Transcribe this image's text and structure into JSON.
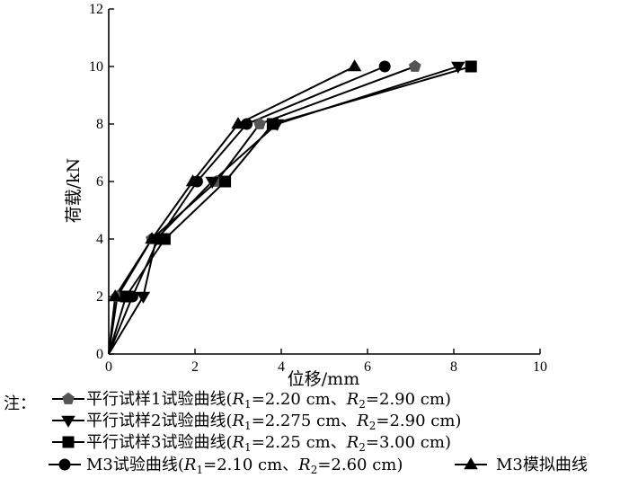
{
  "chart_data": {
    "type": "line",
    "xlabel": "位移/mm",
    "ylabel": "荷载/kN",
    "xlim": [
      0,
      10
    ],
    "ylim": [
      0,
      12
    ],
    "xticks": [
      0,
      2,
      4,
      6,
      8,
      10
    ],
    "yticks": [
      0,
      2,
      4,
      6,
      8,
      10,
      12
    ],
    "grid": false,
    "legend_position": "bottom",
    "legend_prefix": "注：",
    "series": [
      {
        "name": "平行试样1试验曲线(R1=2.20 cm、R2=2.90 cm)",
        "label_main": "平行试样1试验曲线(",
        "r1_value": "=2.20 cm、",
        "r2_value": "=2.90 cm)",
        "marker": "pentagon",
        "marker_color": "#555555",
        "x": [
          0,
          0.2,
          1.0,
          2.5,
          3.5,
          7.1
        ],
        "y": [
          0,
          2,
          4,
          6,
          8,
          10
        ]
      },
      {
        "name": "平行试样2试验曲线(R1=2.275 cm、R2=2.90 cm)",
        "label_main": "平行试样2试验曲线(",
        "r1_value": "=2.275 cm、",
        "r2_value": "=2.90 cm)",
        "marker": "triangle-down",
        "marker_color": "#000000",
        "x": [
          0,
          0.8,
          1.1,
          2.4,
          3.9,
          8.1
        ],
        "y": [
          0,
          2,
          4,
          6,
          8,
          10
        ]
      },
      {
        "name": "平行试样3试验曲线(R1=2.25 cm、R2=3.00 cm)",
        "label_main": "平行试样3试验曲线(",
        "r1_value": "=2.25 cm、",
        "r2_value": "=3.00 cm)",
        "marker": "square",
        "marker_color": "#000000",
        "x": [
          0,
          0.4,
          1.3,
          2.7,
          3.8,
          8.4
        ],
        "y": [
          0,
          2,
          4,
          6,
          8,
          10
        ]
      },
      {
        "name": "M3试验曲线(R1=2.10 cm、R2=2.60 cm)",
        "label_main": "M3试验曲线(",
        "r1_value": "=2.10 cm、",
        "r2_value": "=2.60 cm)",
        "marker": "circle",
        "marker_color": "#000000",
        "x": [
          0,
          0.55,
          1.15,
          2.05,
          3.2,
          6.4
        ],
        "y": [
          0,
          2,
          4,
          6,
          8,
          10
        ]
      },
      {
        "name": "M3模拟曲线",
        "label_main": "M3模拟曲线",
        "marker": "triangle-up",
        "marker_color": "#000000",
        "x": [
          0,
          0.15,
          1.0,
          1.95,
          3.0,
          5.7
        ],
        "y": [
          0,
          2,
          4,
          6,
          8,
          10
        ]
      }
    ]
  }
}
